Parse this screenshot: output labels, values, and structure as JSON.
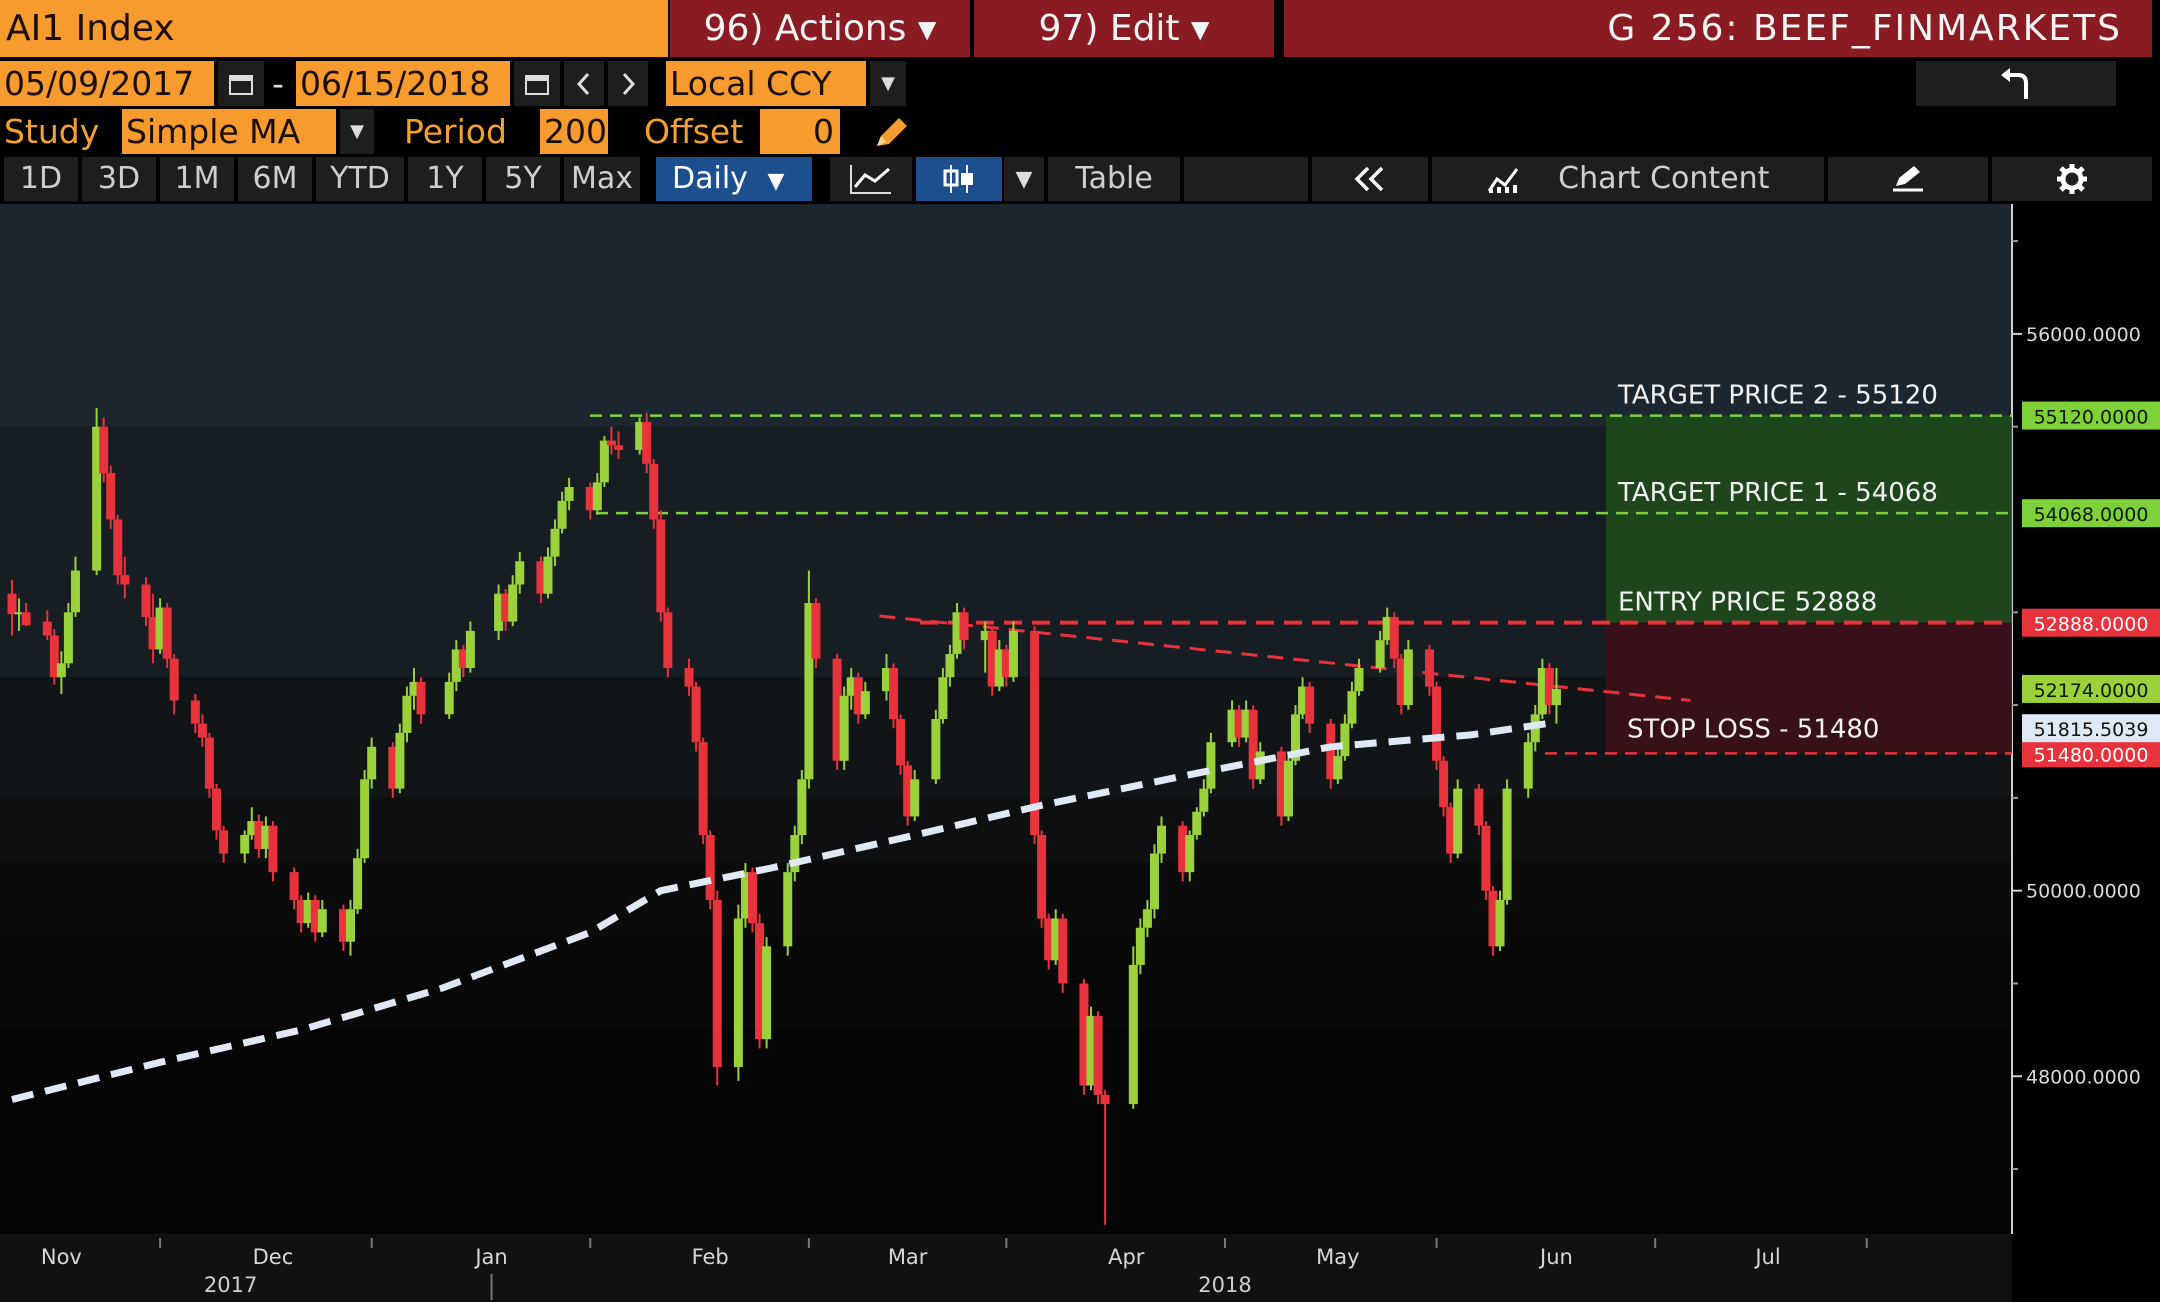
{
  "header": {
    "security": "AI1 Index",
    "actions_menu": "96) Actions",
    "edit_menu": "97) Edit",
    "graph_title": "G 256: BEEF_FINMARKETS"
  },
  "range": {
    "start_date": "05/09/2017",
    "separator": "-",
    "end_date": "06/15/2018",
    "currency": "Local CCY"
  },
  "study": {
    "study_label": "Study",
    "study_value": "Simple MA",
    "period_label": "Period",
    "period_value": "200",
    "offset_label": "Offset",
    "offset_value": "0"
  },
  "toolbar": {
    "periods": [
      "1D",
      "3D",
      "1M",
      "6M",
      "YTD",
      "1Y",
      "5Y",
      "Max"
    ],
    "frequency": "Daily",
    "table": "Table",
    "chart_content": "Chart Content"
  },
  "colors": {
    "up_candle": "#9bd13a",
    "down_candle": "#e8323c",
    "moving_average": "#dfe9f5",
    "target_line": "#7fd13a",
    "entry_line": "#e8323c",
    "profit_zone": "#1f4a1c",
    "loss_zone": "#3d1018"
  },
  "chart_data": {
    "type": "candlestick",
    "security": "AI1 Index",
    "frequency": "Daily",
    "x_range": [
      "2017-10-25",
      "2018-07-20"
    ],
    "ylim": [
      46300,
      57400
    ],
    "month_labels": [
      "Nov",
      "Dec",
      "Jan",
      "Feb",
      "Mar",
      "Apr",
      "May",
      "Jun",
      "Jul"
    ],
    "year_labels": [
      "2017",
      "2018"
    ],
    "y_ticks": [
      {
        "value": 56000,
        "label": "56000.0000"
      },
      {
        "value": 50000,
        "label": "50000.0000"
      },
      {
        "value": 48000,
        "label": "48000.0000"
      }
    ],
    "levels": [
      {
        "value": 55120,
        "label": "TARGET PRICE 2 - 55120",
        "tag": "55120.0000",
        "kind": "target"
      },
      {
        "value": 54068,
        "label": "TARGET PRICE 1 - 54068",
        "tag": "54068.0000",
        "kind": "target"
      },
      {
        "value": 52888,
        "label": "ENTRY PRICE 52888",
        "tag": "52888.0000",
        "kind": "entry"
      },
      {
        "value": 51480,
        "label": "STOP LOSS - 51480",
        "tag": "51480.0000",
        "kind": "stop"
      }
    ],
    "last_price": {
      "value": 52174,
      "tag": "52174.0000"
    },
    "moving_average_last": {
      "value": 51815.5039,
      "tag": "51815.5039"
    },
    "moving_average": {
      "period": 200,
      "points": [
        [
          "2017-10-25",
          47750
        ],
        [
          "2017-11-15",
          48150
        ],
        [
          "2017-12-05",
          48500
        ],
        [
          "2017-12-25",
          48950
        ],
        [
          "2018-01-15",
          49550
        ],
        [
          "2018-01-25",
          50000
        ],
        [
          "2018-02-10",
          50250
        ],
        [
          "2018-03-01",
          50580
        ],
        [
          "2018-03-20",
          50920
        ],
        [
          "2018-04-10",
          51250
        ],
        [
          "2018-04-30",
          51550
        ],
        [
          "2018-05-20",
          51680
        ],
        [
          "2018-06-01",
          51815
        ]
      ]
    },
    "trend_line": {
      "points": [
        [
          "2018-02-25",
          52960
        ],
        [
          "2018-06-20",
          52050
        ]
      ]
    },
    "candles": [
      [
        "2017-10-25",
        53200,
        53350,
        52750,
        52980
      ],
      [
        "2017-10-26",
        52980,
        53150,
        52800,
        53000
      ],
      [
        "2017-10-27",
        53000,
        53100,
        52850,
        52860
      ],
      [
        "2017-10-30",
        52900,
        53020,
        52700,
        52750
      ],
      [
        "2017-10-31",
        52750,
        52820,
        52220,
        52300
      ],
      [
        "2017-11-01",
        52300,
        52580,
        52120,
        52450
      ],
      [
        "2017-11-02",
        52450,
        53100,
        52400,
        53000
      ],
      [
        "2017-11-03",
        53000,
        53600,
        52950,
        53450
      ],
      [
        "2017-11-06",
        53450,
        55200,
        53400,
        55000
      ],
      [
        "2017-11-07",
        55000,
        55100,
        54400,
        54500
      ],
      [
        "2017-11-08",
        54500,
        54580,
        53900,
        54000
      ],
      [
        "2017-11-09",
        54000,
        54050,
        53300,
        53400
      ],
      [
        "2017-11-10",
        53400,
        53600,
        53150,
        53300
      ],
      [
        "2017-11-13",
        53300,
        53380,
        52850,
        52950
      ],
      [
        "2017-11-14",
        52950,
        53200,
        52450,
        52600
      ],
      [
        "2017-11-15",
        52600,
        53150,
        52550,
        53050
      ],
      [
        "2017-11-16",
        53050,
        53100,
        52400,
        52500
      ],
      [
        "2017-11-17",
        52500,
        52550,
        51900,
        52050
      ],
      [
        "2017-11-20",
        52050,
        52120,
        51700,
        51800
      ],
      [
        "2017-11-21",
        51800,
        51900,
        51550,
        51650
      ],
      [
        "2017-11-22",
        51650,
        51700,
        51000,
        51100
      ],
      [
        "2017-11-23",
        51100,
        51150,
        50550,
        50650
      ],
      [
        "2017-11-24",
        50650,
        50700,
        50300,
        50400
      ],
      [
        "2017-11-27",
        50400,
        50650,
        50300,
        50600
      ],
      [
        "2017-11-28",
        50600,
        50900,
        50550,
        50750
      ],
      [
        "2017-11-29",
        50750,
        50820,
        50350,
        50450
      ],
      [
        "2017-11-30",
        50450,
        50800,
        50350,
        50700
      ],
      [
        "2017-12-01",
        50700,
        50750,
        50100,
        50200
      ],
      [
        "2017-12-04",
        50200,
        50250,
        49800,
        49900
      ],
      [
        "2017-12-05",
        49900,
        49950,
        49550,
        49650
      ],
      [
        "2017-12-06",
        49650,
        49980,
        49600,
        49900
      ],
      [
        "2017-12-07",
        49900,
        49950,
        49450,
        49550
      ],
      [
        "2017-12-08",
        49550,
        49900,
        49500,
        49800
      ],
      [
        "2017-12-11",
        49800,
        49850,
        49350,
        49450
      ],
      [
        "2017-12-12",
        49450,
        49900,
        49300,
        49800
      ],
      [
        "2017-12-13",
        49800,
        50450,
        49750,
        50350
      ],
      [
        "2017-12-14",
        50350,
        51300,
        50300,
        51200
      ],
      [
        "2017-12-15",
        51200,
        51650,
        51100,
        51550
      ],
      [
        "2017-12-18",
        51550,
        51600,
        51000,
        51100
      ],
      [
        "2017-12-19",
        51100,
        51800,
        51050,
        51700
      ],
      [
        "2017-12-20",
        51700,
        52200,
        51600,
        52100
      ],
      [
        "2017-12-21",
        52100,
        52400,
        51950,
        52250
      ],
      [
        "2017-12-22",
        52250,
        52300,
        51800,
        51900
      ],
      [
        "2017-12-26",
        51900,
        52350,
        51850,
        52250
      ],
      [
        "2017-12-27",
        52250,
        52700,
        52150,
        52600
      ],
      [
        "2017-12-28",
        52600,
        52650,
        52300,
        52400
      ],
      [
        "2017-12-29",
        52400,
        52900,
        52350,
        52800
      ],
      [
        "2018-01-02",
        52800,
        53300,
        52700,
        53200
      ],
      [
        "2018-01-03",
        53200,
        53250,
        52800,
        52900
      ],
      [
        "2018-01-04",
        52900,
        53400,
        52850,
        53300
      ],
      [
        "2018-01-05",
        53300,
        53650,
        53200,
        53550
      ],
      [
        "2018-01-08",
        53550,
        53600,
        53100,
        53200
      ],
      [
        "2018-01-09",
        53200,
        53700,
        53150,
        53600
      ],
      [
        "2018-01-10",
        53600,
        54000,
        53500,
        53900
      ],
      [
        "2018-01-11",
        53900,
        54300,
        53850,
        54200
      ],
      [
        "2018-01-12",
        54200,
        54450,
        54100,
        54350
      ],
      [
        "2018-01-15",
        54350,
        54400,
        54000,
        54100
      ],
      [
        "2018-01-16",
        54100,
        54500,
        54050,
        54400
      ],
      [
        "2018-01-17",
        54400,
        54900,
        54350,
        54850
      ],
      [
        "2018-01-18",
        54850,
        55000,
        54700,
        54800
      ],
      [
        "2018-01-19",
        54800,
        54950,
        54650,
        54750
      ],
      [
        "2018-01-22",
        54750,
        55100,
        54700,
        55050
      ],
      [
        "2018-01-23",
        55050,
        55150,
        54500,
        54600
      ],
      [
        "2018-01-24",
        54600,
        54650,
        53900,
        54000
      ],
      [
        "2018-01-25",
        54000,
        54100,
        52900,
        53000
      ],
      [
        "2018-01-26",
        53000,
        53050,
        52300,
        52400
      ],
      [
        "2018-01-29",
        52400,
        52500,
        52100,
        52200
      ],
      [
        "2018-01-30",
        52200,
        52250,
        51500,
        51600
      ],
      [
        "2018-01-31",
        51600,
        51650,
        50500,
        50600
      ],
      [
        "2018-02-01",
        50600,
        50650,
        49800,
        49900
      ],
      [
        "2018-02-02",
        49900,
        50000,
        47900,
        48100
      ],
      [
        "2018-02-05",
        48100,
        49850,
        47950,
        49700
      ],
      [
        "2018-02-06",
        49700,
        50300,
        49600,
        50200
      ],
      [
        "2018-02-07",
        50200,
        50250,
        49550,
        49650
      ],
      [
        "2018-02-08",
        49650,
        49750,
        48300,
        48400
      ],
      [
        "2018-02-09",
        48400,
        49500,
        48300,
        49400
      ],
      [
        "2018-02-12",
        49400,
        50300,
        49300,
        50200
      ],
      [
        "2018-02-13",
        50200,
        50700,
        50100,
        50600
      ],
      [
        "2018-02-14",
        50600,
        51300,
        50500,
        51200
      ],
      [
        "2018-02-15",
        51200,
        53450,
        51100,
        53100
      ],
      [
        "2018-02-16",
        53100,
        53150,
        52400,
        52500
      ],
      [
        "2018-02-19",
        52500,
        52550,
        51300,
        51400
      ],
      [
        "2018-02-20",
        51400,
        52200,
        51300,
        52100
      ],
      [
        "2018-02-21",
        52100,
        52400,
        51950,
        52300
      ],
      [
        "2018-02-22",
        52300,
        52350,
        51800,
        51900
      ],
      [
        "2018-02-23",
        51900,
        52250,
        51850,
        52150
      ],
      [
        "2018-02-26",
        52150,
        52550,
        52050,
        52400
      ],
      [
        "2018-02-27",
        52400,
        52450,
        51750,
        51850
      ],
      [
        "2018-02-28",
        51850,
        51900,
        51250,
        51350
      ],
      [
        "2018-03-01",
        51350,
        51400,
        50700,
        50800
      ],
      [
        "2018-03-02",
        50800,
        51300,
        50750,
        51200
      ],
      [
        "2018-03-05",
        51200,
        51950,
        51150,
        51850
      ],
      [
        "2018-03-06",
        51850,
        52400,
        51800,
        52300
      ],
      [
        "2018-03-07",
        52300,
        52650,
        52200,
        52550
      ],
      [
        "2018-03-08",
        52550,
        53100,
        52500,
        53000
      ],
      [
        "2018-03-09",
        53000,
        53050,
        52600,
        52700
      ],
      [
        "2018-03-12",
        52700,
        52900,
        52350,
        52800
      ],
      [
        "2018-03-13",
        52800,
        52850,
        52100,
        52200
      ],
      [
        "2018-03-14",
        52200,
        52700,
        52150,
        52600
      ],
      [
        "2018-03-15",
        52600,
        52650,
        52200,
        52300
      ],
      [
        "2018-03-16",
        52300,
        52900,
        52250,
        52800
      ],
      [
        "2018-03-19",
        52800,
        52850,
        50500,
        50600
      ],
      [
        "2018-03-20",
        50600,
        50650,
        49600,
        49700
      ],
      [
        "2018-03-21",
        49700,
        49750,
        49150,
        49250
      ],
      [
        "2018-03-22",
        49250,
        49800,
        49200,
        49700
      ],
      [
        "2018-03-23",
        49700,
        49750,
        48900,
        49000
      ],
      [
        "2018-03-26",
        49000,
        49050,
        47800,
        47900
      ],
      [
        "2018-03-27",
        47900,
        48750,
        47850,
        48650
      ],
      [
        "2018-03-28",
        48650,
        48700,
        47700,
        47800
      ],
      [
        "2018-03-29",
        47800,
        47850,
        46400,
        47700
      ],
      [
        "2018-04-02",
        47700,
        49400,
        47650,
        49200
      ],
      [
        "2018-04-03",
        49200,
        49700,
        49100,
        49600
      ],
      [
        "2018-04-04",
        49600,
        49900,
        49500,
        49800
      ],
      [
        "2018-04-05",
        49800,
        50500,
        49700,
        50400
      ],
      [
        "2018-04-06",
        50400,
        50800,
        50300,
        50700
      ],
      [
        "2018-04-09",
        50700,
        50750,
        50100,
        50200
      ],
      [
        "2018-04-10",
        50200,
        50650,
        50100,
        50600
      ],
      [
        "2018-04-11",
        50600,
        50900,
        50550,
        50850
      ],
      [
        "2018-04-12",
        50850,
        51200,
        50800,
        51100
      ],
      [
        "2018-04-13",
        51100,
        51700,
        51050,
        51600
      ],
      [
        "2018-04-16",
        51600,
        52050,
        51550,
        51950
      ],
      [
        "2018-04-17",
        51950,
        52000,
        51550,
        51650
      ],
      [
        "2018-04-18",
        51650,
        52050,
        51600,
        51950
      ],
      [
        "2018-04-19",
        51950,
        52000,
        51100,
        51200
      ],
      [
        "2018-04-20",
        51200,
        51600,
        51150,
        51500
      ],
      [
        "2018-04-23",
        51500,
        51550,
        50700,
        50800
      ],
      [
        "2018-04-24",
        50800,
        51500,
        50750,
        51400
      ],
      [
        "2018-04-25",
        51400,
        52000,
        51350,
        51900
      ],
      [
        "2018-04-26",
        51900,
        52300,
        51850,
        52200
      ],
      [
        "2018-04-27",
        52200,
        52250,
        51700,
        51800
      ],
      [
        "2018-04-30",
        51800,
        51850,
        51100,
        51200
      ],
      [
        "2018-05-01",
        51200,
        51550,
        51150,
        51450
      ],
      [
        "2018-05-02",
        51450,
        51900,
        51400,
        51800
      ],
      [
        "2018-05-03",
        51800,
        52250,
        51750,
        52150
      ],
      [
        "2018-05-04",
        52150,
        52500,
        52100,
        52400
      ],
      [
        "2018-05-07",
        52400,
        52800,
        52350,
        52700
      ],
      [
        "2018-05-08",
        52700,
        53050,
        52650,
        52950
      ],
      [
        "2018-05-09",
        52950,
        53000,
        52400,
        52500
      ],
      [
        "2018-05-10",
        52500,
        52550,
        51900,
        52000
      ],
      [
        "2018-05-11",
        52000,
        52700,
        51950,
        52600
      ],
      [
        "2018-05-14",
        52600,
        52650,
        52100,
        52200
      ],
      [
        "2018-05-15",
        52200,
        52250,
        51300,
        51400
      ],
      [
        "2018-05-16",
        51400,
        51450,
        50800,
        50900
      ],
      [
        "2018-05-17",
        50900,
        50950,
        50300,
        50400
      ],
      [
        "2018-05-18",
        50400,
        51200,
        50350,
        51100
      ],
      [
        "2018-05-21",
        51100,
        51150,
        50600,
        50700
      ],
      [
        "2018-05-22",
        50700,
        50750,
        49900,
        50000
      ],
      [
        "2018-05-23",
        50000,
        50050,
        49300,
        49400
      ],
      [
        "2018-05-24",
        49400,
        50000,
        49350,
        49900
      ],
      [
        "2018-05-25",
        49900,
        51200,
        49850,
        51100
      ],
      [
        "2018-05-28",
        51100,
        51700,
        51000,
        51600
      ],
      [
        "2018-05-29",
        51600,
        52000,
        51500,
        51900
      ],
      [
        "2018-05-30",
        51900,
        52500,
        51850,
        52400
      ],
      [
        "2018-05-31",
        52400,
        52450,
        51900,
        52000
      ],
      [
        "2018-06-01",
        52000,
        52400,
        51800,
        52174
      ]
    ]
  }
}
